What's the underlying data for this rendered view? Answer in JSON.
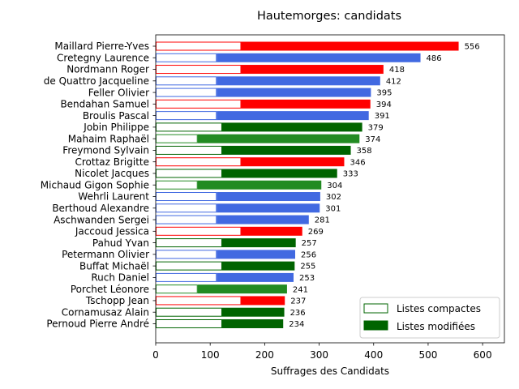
{
  "chart_data": {
    "type": "bar",
    "orientation": "horizontal",
    "title": "Hautemorges: candidats",
    "xlabel": "Suffrages des Candidats",
    "ylabel": "",
    "xlim": [
      0,
      640
    ],
    "xticks": [
      0,
      100,
      200,
      300,
      400,
      500,
      600
    ],
    "colors": {
      "red": "#ff0000",
      "blue": "#4169e1",
      "green": "#228b22",
      "darkgreen": "#006400"
    },
    "legend": {
      "position": "lower right",
      "entries": [
        {
          "label": "Listes compactes",
          "style": "outline",
          "color": "#006400"
        },
        {
          "label": "Listes modifiées",
          "style": "filled",
          "color": "#006400"
        }
      ]
    },
    "candidates": [
      {
        "name": "Maillard Pierre-Yves",
        "value": 556,
        "compact": 157,
        "color": "red"
      },
      {
        "name": "Cretegny Laurence",
        "value": 486,
        "compact": 112,
        "color": "blue"
      },
      {
        "name": "Nordmann Roger",
        "value": 418,
        "compact": 157,
        "color": "red"
      },
      {
        "name": "de Quattro Jacqueline",
        "value": 412,
        "compact": 112,
        "color": "blue"
      },
      {
        "name": "Feller Olivier",
        "value": 395,
        "compact": 112,
        "color": "blue"
      },
      {
        "name": "Bendahan Samuel",
        "value": 394,
        "compact": 157,
        "color": "red"
      },
      {
        "name": "Broulis Pascal",
        "value": 391,
        "compact": 112,
        "color": "blue"
      },
      {
        "name": "Jobin Philippe",
        "value": 379,
        "compact": 122,
        "color": "darkgreen"
      },
      {
        "name": "Mahaim Raphaël",
        "value": 374,
        "compact": 77,
        "color": "green"
      },
      {
        "name": "Freymond Sylvain",
        "value": 358,
        "compact": 122,
        "color": "darkgreen"
      },
      {
        "name": "Crottaz Brigitte",
        "value": 346,
        "compact": 157,
        "color": "red"
      },
      {
        "name": "Nicolet Jacques",
        "value": 333,
        "compact": 122,
        "color": "darkgreen"
      },
      {
        "name": "Michaud Gigon Sophie",
        "value": 304,
        "compact": 77,
        "color": "green"
      },
      {
        "name": "Wehrli Laurent",
        "value": 302,
        "compact": 112,
        "color": "blue"
      },
      {
        "name": "Berthoud Alexandre",
        "value": 301,
        "compact": 112,
        "color": "blue"
      },
      {
        "name": "Aschwanden Sergei",
        "value": 281,
        "compact": 112,
        "color": "blue"
      },
      {
        "name": "Jaccoud Jessica",
        "value": 269,
        "compact": 157,
        "color": "red"
      },
      {
        "name": "Pahud Yvan",
        "value": 257,
        "compact": 122,
        "color": "darkgreen"
      },
      {
        "name": "Petermann Olivier",
        "value": 256,
        "compact": 112,
        "color": "blue"
      },
      {
        "name": "Buffat Michaël",
        "value": 255,
        "compact": 122,
        "color": "darkgreen"
      },
      {
        "name": "Ruch Daniel",
        "value": 253,
        "compact": 112,
        "color": "blue"
      },
      {
        "name": "Porchet Léonore",
        "value": 241,
        "compact": 77,
        "color": "green"
      },
      {
        "name": "Tschopp Jean",
        "value": 237,
        "compact": 157,
        "color": "red"
      },
      {
        "name": "Cornamusaz Alain",
        "value": 236,
        "compact": 122,
        "color": "darkgreen"
      },
      {
        "name": "Pernoud Pierre André",
        "value": 234,
        "compact": 122,
        "color": "darkgreen"
      }
    ]
  }
}
